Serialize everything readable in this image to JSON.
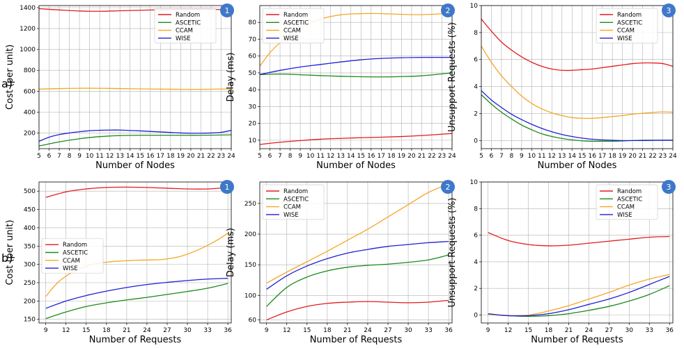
{
  "row_labels": [
    "a)",
    "b)"
  ],
  "colors": {
    "Random": "#e41a1c",
    "ASCETIC": "#1a8a1a",
    "CCAM": "#f5a623",
    "WISE": "#1f1fd6",
    "badge": "#3f78c9",
    "grid": "#b0b0b0"
  },
  "chart_data": [
    {
      "type": "line",
      "id": "a1",
      "badge": "1",
      "xlabel": "Number of Nodes",
      "ylabel": "Cost (per unit)",
      "xlim": [
        5,
        24
      ],
      "ylim": [
        50,
        1420
      ],
      "xticks": [
        5,
        6,
        7,
        8,
        9,
        10,
        11,
        12,
        13,
        14,
        15,
        16,
        17,
        18,
        19,
        20,
        21,
        22,
        23,
        24
      ],
      "yticks": [
        200,
        400,
        600,
        800,
        1000,
        1200,
        1400
      ],
      "legend_loc": "top-right",
      "series": [
        {
          "name": "Random",
          "x": [
            5,
            7,
            9,
            11,
            13,
            15,
            17,
            19,
            21,
            24
          ],
          "y": [
            1390,
            1378,
            1368,
            1365,
            1370,
            1375,
            1380,
            1383,
            1384,
            1380
          ]
        },
        {
          "name": "ASCETIC",
          "x": [
            5,
            7,
            9,
            11,
            13,
            15,
            17,
            19,
            21,
            24
          ],
          "y": [
            75,
            115,
            145,
            165,
            175,
            178,
            178,
            178,
            178,
            182
          ]
        },
        {
          "name": "CCAM",
          "x": [
            5,
            7,
            9,
            11,
            13,
            15,
            17,
            19,
            21,
            24
          ],
          "y": [
            620,
            625,
            628,
            628,
            625,
            622,
            620,
            618,
            618,
            622
          ]
        },
        {
          "name": "WISE",
          "x": [
            5,
            6,
            7,
            8,
            9,
            10,
            11,
            12,
            13,
            14,
            15,
            16,
            17,
            18,
            19,
            20,
            21,
            22,
            23,
            24
          ],
          "y": [
            120,
            160,
            185,
            200,
            212,
            222,
            226,
            228,
            228,
            224,
            220,
            215,
            210,
            205,
            200,
            198,
            198,
            200,
            206,
            225
          ]
        }
      ]
    },
    {
      "type": "line",
      "id": "a2",
      "badge": "2",
      "xlabel": "Number of Nodes",
      "ylabel": "Delay (ms)",
      "xlim": [
        5,
        24
      ],
      "ylim": [
        5,
        90
      ],
      "xticks": [
        5,
        6,
        7,
        8,
        9,
        10,
        11,
        12,
        13,
        14,
        15,
        16,
        17,
        18,
        19,
        20,
        21,
        22,
        23,
        24
      ],
      "yticks": [
        10,
        20,
        30,
        40,
        50,
        60,
        70,
        80
      ],
      "legend_loc": "top-left",
      "series": [
        {
          "name": "Random",
          "x": [
            5,
            7,
            9,
            11,
            13,
            15,
            17,
            19,
            21,
            24
          ],
          "y": [
            7.5,
            8.8,
            9.8,
            10.6,
            11.1,
            11.5,
            11.8,
            12.2,
            12.8,
            14
          ]
        },
        {
          "name": "ASCETIC",
          "x": [
            5,
            7,
            9,
            11,
            13,
            15,
            17,
            19,
            21,
            24
          ],
          "y": [
            49,
            49.3,
            48.9,
            48.4,
            48,
            47.7,
            47.6,
            47.8,
            48.3,
            50
          ]
        },
        {
          "name": "CCAM",
          "x": [
            5,
            6,
            7,
            8,
            9,
            10,
            11,
            12,
            13,
            14,
            15,
            16,
            17,
            18,
            19,
            20,
            21,
            22,
            23,
            24
          ],
          "y": [
            54,
            62,
            68,
            73,
            77,
            80,
            82,
            83.5,
            84.5,
            85,
            85.2,
            85.3,
            85.2,
            85,
            84.8,
            84.6,
            84.6,
            84.8,
            85.2,
            86
          ]
        },
        {
          "name": "WISE",
          "x": [
            5,
            7,
            9,
            11,
            13,
            15,
            17,
            19,
            21,
            24
          ],
          "y": [
            49,
            51.5,
            53.5,
            55,
            56.5,
            57.8,
            58.6,
            59,
            59.2,
            59.2
          ]
        }
      ]
    },
    {
      "type": "line",
      "id": "a3",
      "badge": "3",
      "xlabel": "Number of Nodes",
      "ylabel": "Unsupport Requests (%)",
      "xlim": [
        5,
        24
      ],
      "ylim": [
        -0.6,
        10
      ],
      "xticks": [
        5,
        6,
        7,
        8,
        9,
        10,
        11,
        12,
        13,
        14,
        15,
        16,
        17,
        18,
        19,
        20,
        21,
        22,
        23,
        24
      ],
      "yticks": [
        0,
        2,
        4,
        6,
        8,
        10
      ],
      "legend_loc": "top-right",
      "series": [
        {
          "name": "Random",
          "x": [
            5,
            6,
            7,
            8,
            9,
            10,
            11,
            12,
            13,
            14,
            15,
            16,
            17,
            18,
            19,
            20,
            21,
            22,
            23,
            24
          ],
          "y": [
            9.0,
            8.1,
            7.3,
            6.7,
            6.2,
            5.8,
            5.5,
            5.3,
            5.2,
            5.2,
            5.25,
            5.3,
            5.4,
            5.5,
            5.6,
            5.7,
            5.75,
            5.75,
            5.7,
            5.5
          ]
        },
        {
          "name": "ASCETIC",
          "x": [
            5,
            6,
            7,
            8,
            9,
            10,
            11,
            12,
            13,
            14,
            15,
            16,
            17,
            18,
            19,
            20,
            21,
            22,
            23,
            24
          ],
          "y": [
            3.4,
            2.7,
            2.1,
            1.6,
            1.15,
            0.8,
            0.5,
            0.3,
            0.15,
            0.05,
            -0.02,
            -0.05,
            -0.05,
            -0.05,
            -0.03,
            0,
            0.02,
            0.03,
            0.03,
            0.03
          ]
        },
        {
          "name": "CCAM",
          "x": [
            5,
            6,
            7,
            8,
            9,
            10,
            11,
            12,
            13,
            14,
            15,
            16,
            17,
            18,
            19,
            20,
            21,
            22,
            23,
            24
          ],
          "y": [
            7.0,
            5.8,
            4.8,
            4.0,
            3.3,
            2.75,
            2.35,
            2.05,
            1.85,
            1.7,
            1.65,
            1.65,
            1.7,
            1.78,
            1.85,
            1.95,
            2.02,
            2.08,
            2.12,
            2.1
          ]
        },
        {
          "name": "WISE",
          "x": [
            5,
            6,
            7,
            8,
            9,
            10,
            11,
            12,
            13,
            14,
            15,
            16,
            17,
            18,
            19,
            20,
            21,
            22,
            23,
            24
          ],
          "y": [
            3.7,
            3.0,
            2.45,
            1.95,
            1.55,
            1.2,
            0.9,
            0.65,
            0.45,
            0.3,
            0.18,
            0.1,
            0.05,
            0.02,
            0,
            0,
            0,
            0.01,
            0.02,
            0.02
          ]
        }
      ]
    },
    {
      "type": "line",
      "id": "b1",
      "badge": "1",
      "xlabel": "Number of Requests",
      "ylabel": "Cost (per unit)",
      "xlim": [
        8,
        36.5
      ],
      "ylim": [
        140,
        525
      ],
      "xticks": [
        9,
        12,
        15,
        18,
        21,
        24,
        27,
        30,
        33,
        36
      ],
      "yticks": [
        150,
        200,
        250,
        300,
        350,
        400,
        450,
        500
      ],
      "legend_loc": "middle-left",
      "series": [
        {
          "name": "Random",
          "x": [
            9,
            12,
            15,
            18,
            21,
            24,
            27,
            30,
            33,
            36
          ],
          "y": [
            483,
            498,
            506,
            510,
            511,
            510,
            508,
            506,
            506,
            510
          ]
        },
        {
          "name": "ASCETIC",
          "x": [
            9,
            12,
            15,
            18,
            21,
            24,
            27,
            30,
            33,
            36
          ],
          "y": [
            152,
            170,
            185,
            195,
            203,
            210,
            218,
            226,
            235,
            248
          ]
        },
        {
          "name": "CCAM",
          "x": [
            9,
            10,
            11,
            12,
            13,
            14,
            15,
            16,
            17,
            18,
            19,
            20,
            21,
            22,
            23,
            24,
            25,
            26,
            27,
            28,
            29,
            30,
            31,
            32,
            33,
            34,
            35,
            36
          ],
          "y": [
            212,
            235,
            254,
            268,
            279,
            288,
            295,
            300,
            304,
            306,
            308,
            309,
            310,
            311,
            311.5,
            312,
            312.5,
            313,
            315,
            318,
            322,
            328,
            335,
            343,
            352,
            362,
            373,
            385
          ]
        },
        {
          "name": "WISE",
          "x": [
            9,
            12,
            15,
            18,
            21,
            24,
            27,
            30,
            33,
            36
          ],
          "y": [
            180,
            200,
            215,
            227,
            237,
            245,
            251,
            256,
            260,
            262
          ]
        }
      ]
    },
    {
      "type": "line",
      "id": "b2",
      "badge": "2",
      "xlabel": "Number of Requests",
      "ylabel": "Delay (ms)",
      "xlim": [
        8,
        36.5
      ],
      "ylim": [
        55,
        285
      ],
      "xticks": [
        9,
        12,
        15,
        18,
        21,
        24,
        27,
        30,
        33,
        36
      ],
      "yticks": [
        60,
        100,
        150,
        200,
        250
      ],
      "legend_loc": "top-left",
      "series": [
        {
          "name": "Random",
          "x": [
            9,
            12,
            15,
            18,
            21,
            24,
            27,
            30,
            33,
            36
          ],
          "y": [
            60,
            73,
            82,
            87,
            89,
            90,
            89,
            88,
            89,
            92
          ]
        },
        {
          "name": "ASCETIC",
          "x": [
            9,
            12,
            15,
            18,
            21,
            24,
            27,
            30,
            33,
            36
          ],
          "y": [
            82,
            113,
            130,
            140,
            146,
            149,
            151,
            154,
            158,
            166
          ]
        },
        {
          "name": "CCAM",
          "x": [
            9,
            12,
            15,
            18,
            21,
            24,
            27,
            30,
            33,
            36
          ],
          "y": [
            120,
            138,
            155,
            172,
            190,
            208,
            228,
            248,
            268,
            282
          ]
        },
        {
          "name": "WISE",
          "x": [
            9,
            12,
            15,
            18,
            21,
            24,
            27,
            30,
            33,
            36
          ],
          "y": [
            110,
            132,
            148,
            160,
            169,
            175,
            180,
            183,
            186,
            188
          ]
        }
      ]
    },
    {
      "type": "line",
      "id": "b3",
      "badge": "3",
      "xlabel": "Number of Requests",
      "ylabel": "Unsupport Requests (%)",
      "xlim": [
        8,
        36.5
      ],
      "ylim": [
        -0.6,
        10
      ],
      "xticks": [
        9,
        12,
        15,
        18,
        21,
        24,
        27,
        30,
        33,
        36
      ],
      "yticks": [
        0,
        2,
        4,
        6,
        8,
        10
      ],
      "legend_loc": "top-right",
      "series": [
        {
          "name": "Random",
          "x": [
            9,
            12,
            15,
            18,
            21,
            24,
            27,
            30,
            33,
            36
          ],
          "y": [
            6.2,
            5.6,
            5.3,
            5.2,
            5.25,
            5.4,
            5.55,
            5.7,
            5.85,
            5.9
          ]
        },
        {
          "name": "ASCETIC",
          "x": [
            9,
            12,
            15,
            18,
            21,
            24,
            27,
            30,
            33,
            36
          ],
          "y": [
            0.05,
            -0.05,
            -0.1,
            -0.05,
            0.1,
            0.35,
            0.65,
            1.05,
            1.55,
            2.2
          ]
        },
        {
          "name": "CCAM",
          "x": [
            9,
            12,
            15,
            18,
            21,
            24,
            27,
            30,
            33,
            36
          ],
          "y": [
            0.05,
            -0.05,
            0,
            0.3,
            0.7,
            1.2,
            1.7,
            2.25,
            2.7,
            3.05
          ]
        },
        {
          "name": "WISE",
          "x": [
            9,
            12,
            15,
            18,
            21,
            24,
            27,
            30,
            33,
            36
          ],
          "y": [
            0.1,
            -0.05,
            -0.05,
            0.1,
            0.4,
            0.8,
            1.2,
            1.7,
            2.3,
            2.9
          ]
        }
      ]
    }
  ]
}
